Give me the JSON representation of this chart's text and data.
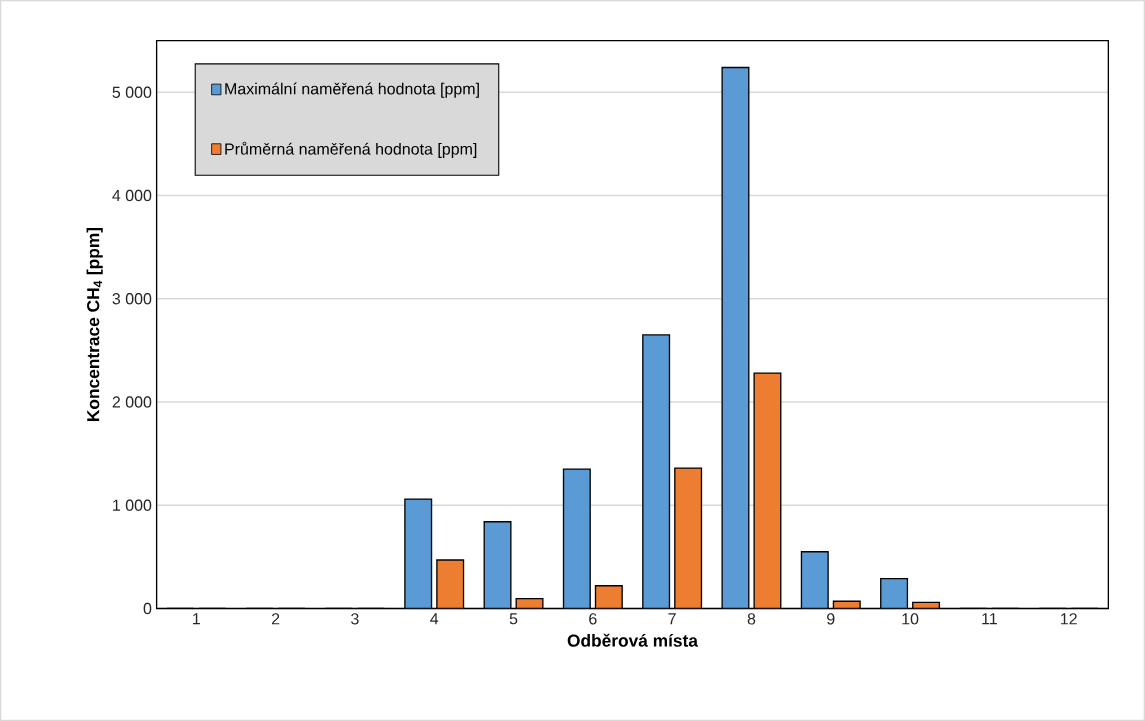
{
  "chart_data": {
    "type": "bar",
    "xlabel": "Odběrová místa",
    "ylabel": "Koncentrace CH$_{4}$ [ppm]",
    "categories": [
      "1",
      "2",
      "3",
      "4",
      "5",
      "6",
      "7",
      "8",
      "9",
      "10",
      "11",
      "12"
    ],
    "series": [
      {
        "name": "Maximální naměřená hodnota [ppm]",
        "color": "#5b9bd5",
        "values": [
          0,
          0,
          0,
          1060,
          840,
          1350,
          2650,
          5240,
          550,
          290,
          0,
          0
        ]
      },
      {
        "name": "Průměrná naměřená hodnota [ppm]",
        "color": "#ed7d31",
        "values": [
          0,
          0,
          0,
          470,
          95,
          220,
          1360,
          2280,
          70,
          60,
          0,
          0
        ]
      }
    ],
    "ylim": [
      0,
      5500
    ],
    "yticks": [
      {
        "value": 0,
        "label": "0"
      },
      {
        "value": 1000,
        "label": "1 000"
      },
      {
        "value": 2000,
        "label": "2 000"
      },
      {
        "value": 3000,
        "label": "3 000"
      },
      {
        "value": 4000,
        "label": "4 000"
      },
      {
        "value": 5000,
        "label": "5 000"
      }
    ],
    "grid": "y",
    "legend": "top left"
  }
}
